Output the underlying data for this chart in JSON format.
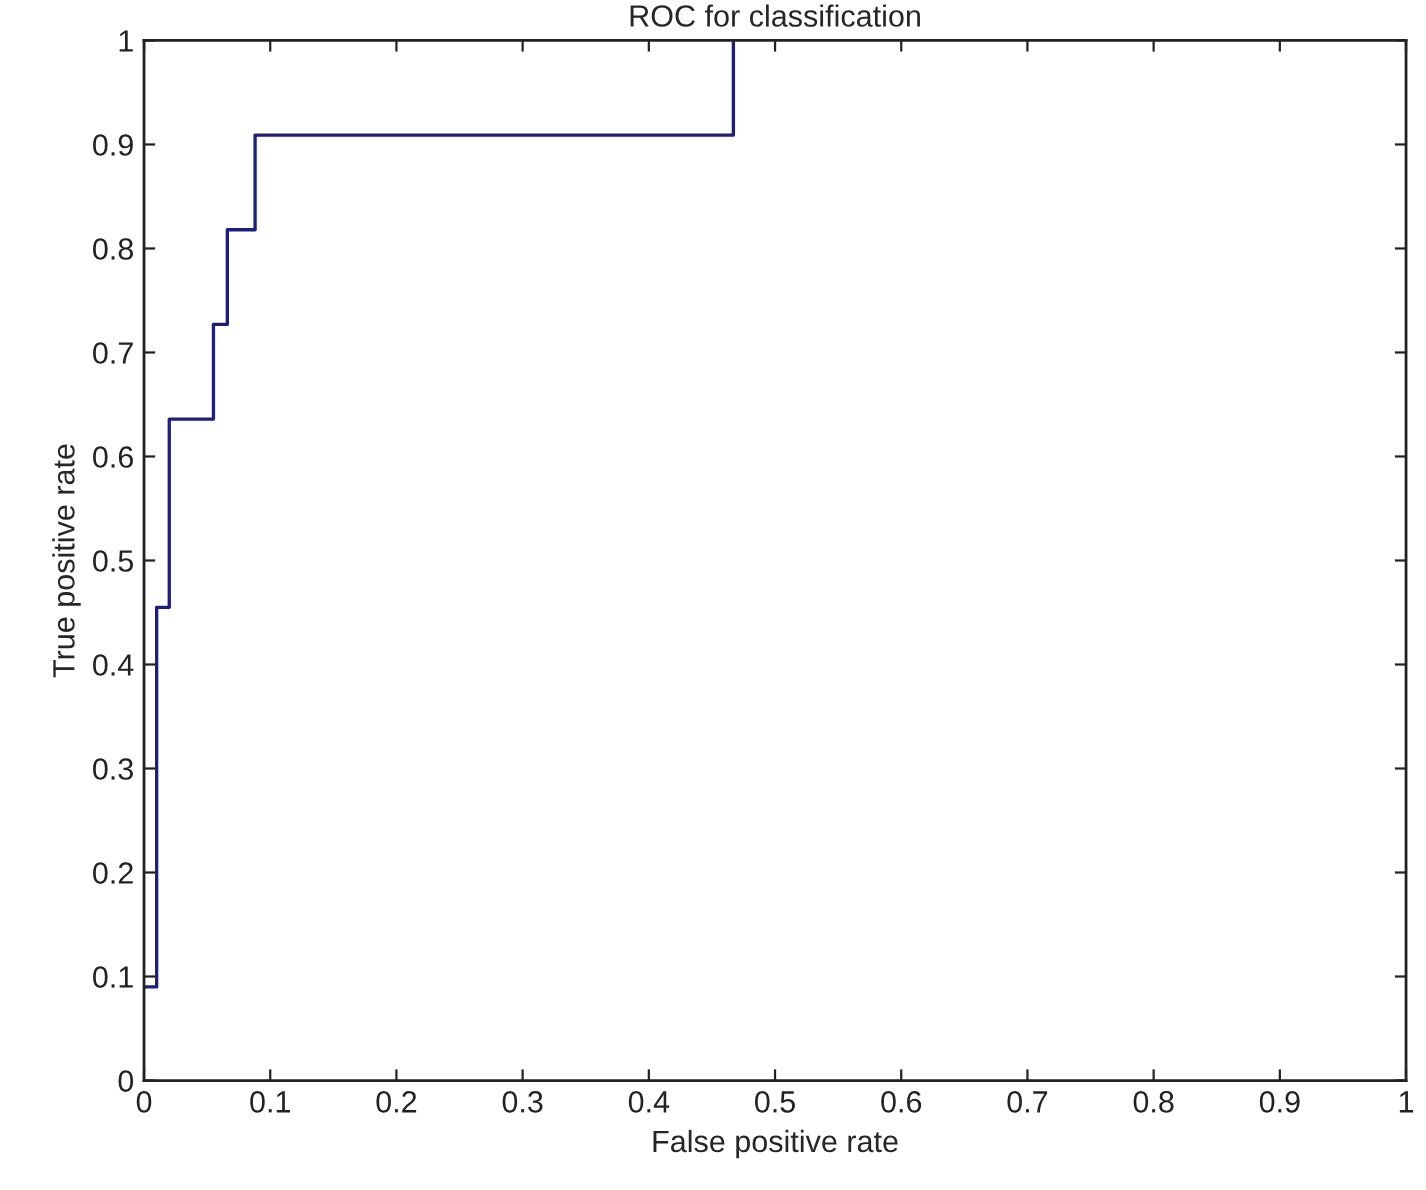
{
  "chart_data": {
    "type": "step",
    "title": "ROC for classification",
    "xlabel": "False positive rate",
    "ylabel": "True positive rate",
    "series": [
      {
        "color": "#1f1f7a",
        "x": [
          0,
          0.01,
          0.02,
          0.055,
          0.066,
          0.088,
          0.467
        ],
        "values": [
          0.09,
          0.455,
          0.636,
          0.727,
          0.818,
          0.909,
          1
        ]
      }
    ],
    "xlim": [
      0,
      1
    ],
    "ylim": [
      0,
      1
    ],
    "xticks": [
      0,
      0.1,
      0.2,
      0.3,
      0.4,
      0.5,
      0.6,
      0.7,
      0.8,
      0.9,
      1
    ],
    "yticks": [
      0,
      0.1,
      0.2,
      0.3,
      0.4,
      0.5,
      0.6,
      0.7,
      0.8,
      0.9,
      1
    ],
    "grid": false
  }
}
